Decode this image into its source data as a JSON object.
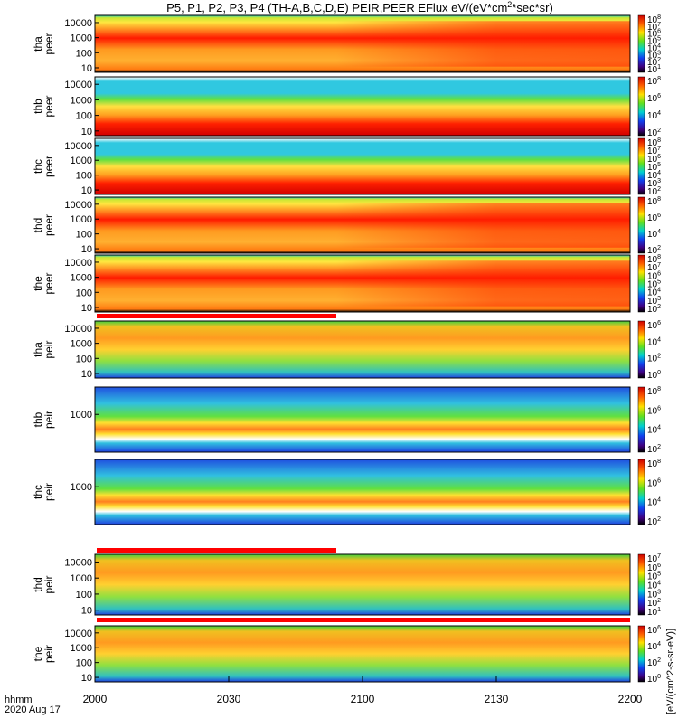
{
  "chart_data": {
    "type": "heatmap",
    "title": "P5, P1, P2, P3, P4 (TH-A,B,C,D,E) PEIR,PEER EFlux eV/(eV*cm",
    "title_sup": "2",
    "title_end": "*sec*sr)",
    "colorbar_label": "[eV/(cm^2-s-sr-eV)]",
    "xlabel": "hhmm",
    "date": "2020 Aug 17",
    "xlim": [
      "2000",
      "2200"
    ],
    "xticks": [
      "2000",
      "2030",
      "2100",
      "2130",
      "2200"
    ],
    "panels": [
      {
        "probe": "tha",
        "product": "peer",
        "yticks": [
          "10000",
          "1000",
          "100",
          "10"
        ],
        "cbar_exponents": [
          8,
          7,
          6,
          5,
          4,
          3,
          2,
          1
        ],
        "regime": "transition"
      },
      {
        "probe": "thb",
        "product": "peer",
        "yticks": [
          "10000",
          "1000",
          "100",
          "10"
        ],
        "cbar_exponents": [
          8,
          6,
          4,
          2
        ],
        "regime": "steady-low"
      },
      {
        "probe": "thc",
        "product": "peer",
        "yticks": [
          "10000",
          "1000",
          "100",
          "10"
        ],
        "cbar_exponents": [
          8,
          7,
          6,
          5,
          4,
          3,
          2
        ],
        "regime": "steady-low"
      },
      {
        "probe": "thd",
        "product": "peer",
        "yticks": [
          "10000",
          "1000",
          "100",
          "10"
        ],
        "cbar_exponents": [
          8,
          6,
          4,
          2
        ],
        "regime": "transition"
      },
      {
        "probe": "the",
        "product": "peer",
        "yticks": [
          "10000",
          "1000",
          "100",
          "10"
        ],
        "cbar_exponents": [
          8,
          7,
          6,
          5,
          4,
          3,
          2
        ],
        "regime": "transition"
      },
      {
        "probe": "tha",
        "product": "peir",
        "yticks": [
          "10000",
          "1000",
          "100",
          "10"
        ],
        "cbar_exponents": [
          6,
          4,
          2,
          0
        ],
        "regime": "ion"
      },
      {
        "probe": "thb",
        "product": "peir",
        "yticks": [
          "1000"
        ],
        "cbar_exponents": [
          8,
          6,
          4,
          2
        ],
        "regime": "ion-band"
      },
      {
        "probe": "thc",
        "product": "peir",
        "yticks": [
          "1000"
        ],
        "cbar_exponents": [
          8,
          6,
          4,
          2
        ],
        "regime": "ion-band"
      },
      {
        "probe": "thd",
        "product": "peir",
        "yticks": [
          "10000",
          "1000",
          "100",
          "10"
        ],
        "cbar_exponents": [
          7,
          6,
          5,
          4,
          3,
          2,
          1
        ],
        "regime": "ion"
      },
      {
        "probe": "the",
        "product": "peir",
        "yticks": [
          "10000",
          "1000",
          "100",
          "10"
        ],
        "cbar_exponents": [
          6,
          4,
          2,
          0
        ],
        "regime": "ion"
      }
    ]
  }
}
